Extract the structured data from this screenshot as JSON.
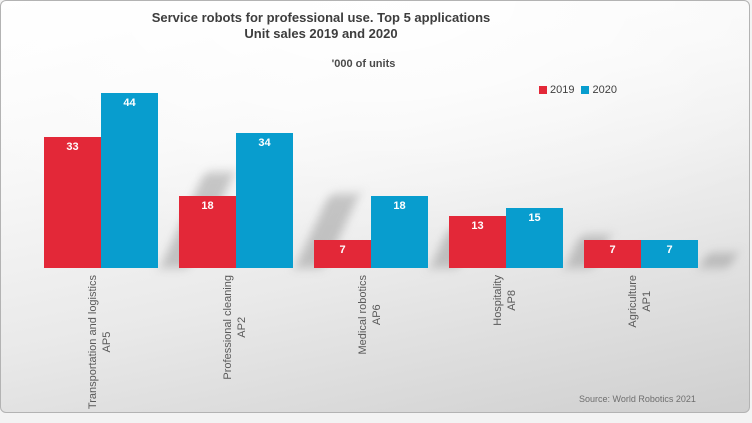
{
  "title": {
    "line1": "Service robots for professional use. Top 5 applications",
    "line2": "Unit sales 2019 and 2020"
  },
  "subtitle": "'000 of units",
  "legend": [
    {
      "label": "2019",
      "color": "#e32838"
    },
    {
      "label": "2020",
      "color": "#089dce"
    }
  ],
  "source": "Source: World Robotics 2021",
  "chart_data": {
    "type": "bar",
    "title": "Service robots for professional use. Top 5 applications — Unit sales 2019 and 2020",
    "unit_label": "'000 of units",
    "categories": [
      "Transportation and logistics",
      "Professional cleaning",
      "Medical robotics",
      "Hospitality",
      "Agriculture"
    ],
    "category_codes": [
      "AP5",
      "AP2",
      "AP6",
      "AP8",
      "AP1"
    ],
    "series": [
      {
        "name": "2019",
        "color": "#e32838",
        "values": [
          33,
          18,
          7,
          13,
          7
        ]
      },
      {
        "name": "2020",
        "color": "#089dce",
        "values": [
          44,
          34,
          18,
          15,
          7
        ]
      }
    ],
    "ylim": [
      0,
      44
    ],
    "value_axis_visible": false,
    "grid": false,
    "data_labels": true,
    "legend_position": "top-right"
  }
}
